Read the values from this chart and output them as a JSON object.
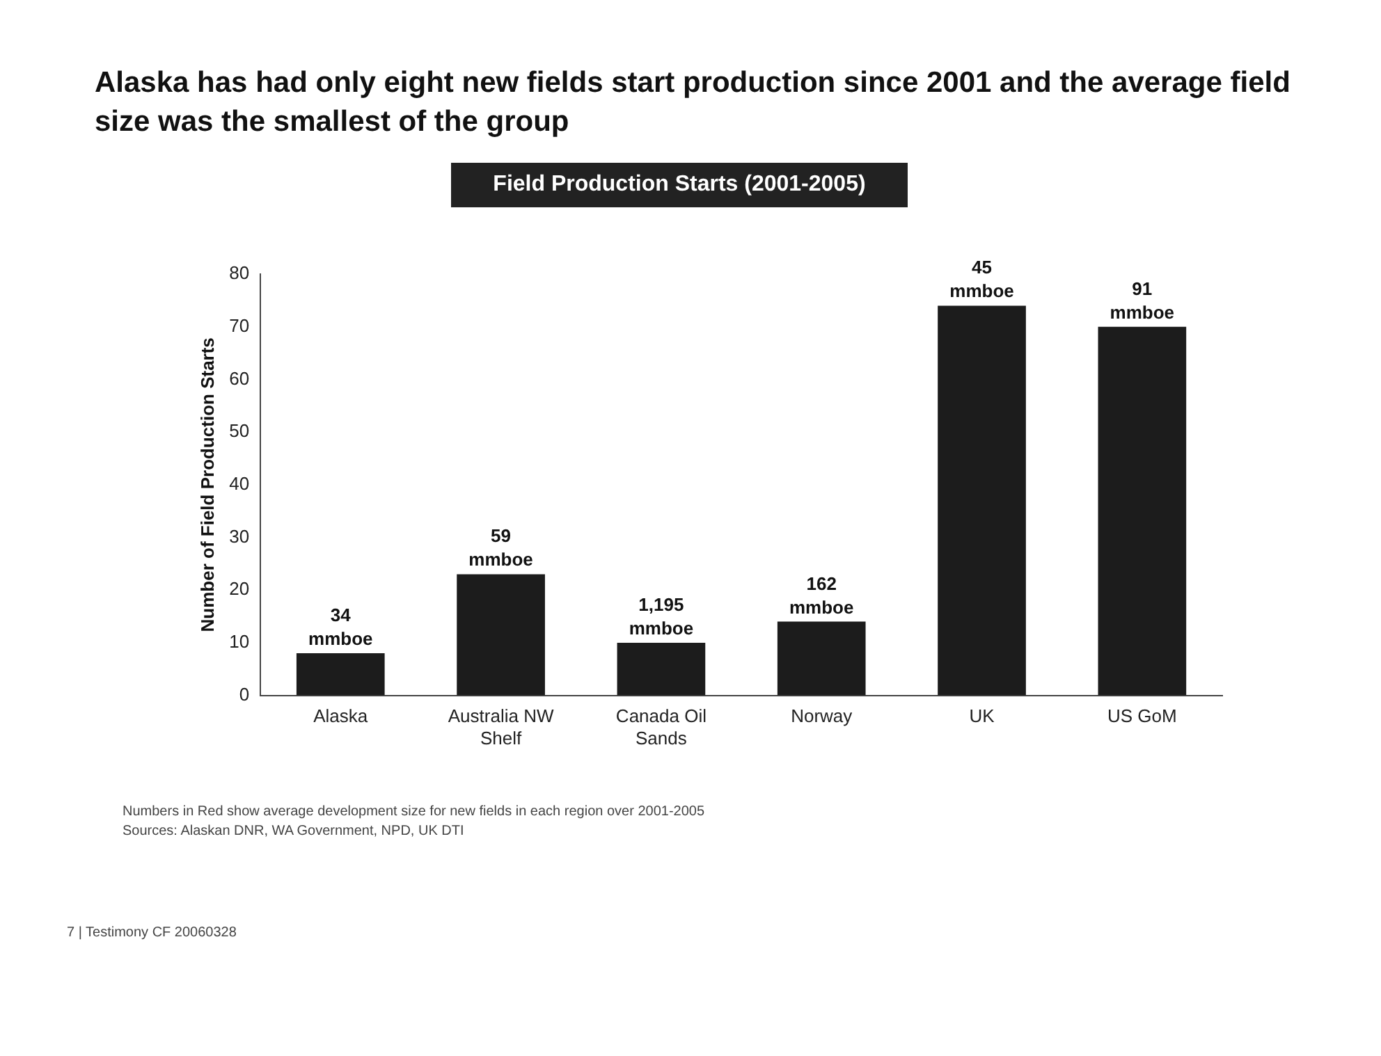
{
  "chart_data": {
    "type": "bar",
    "title": "Alaska has had only eight new fields start production since 2001 and the average field size was the smallest of the group",
    "subtitle": "Field Production Starts (2001-2005)",
    "ylabel": "Number of Field Production Starts",
    "categories": [
      "Alaska",
      "Australia NW Shelf",
      "Canada Oil Sands",
      "Norway",
      "UK",
      "US GoM"
    ],
    "values": [
      8,
      23,
      10,
      14,
      74,
      70
    ],
    "color": "#1c1c1c",
    "ylim": [
      0,
      80
    ],
    "yticks": [
      0,
      10,
      20,
      30,
      40,
      50,
      60,
      70,
      80
    ],
    "grid": false,
    "legend": false,
    "annotations": [
      {
        "text": "34 mmboe",
        "x": "Alaska",
        "y": 8
      },
      {
        "text": "59 mmboe",
        "x": "Australia NW Shelf",
        "y": 23
      },
      {
        "text": "1,195 mmboe",
        "x": "Canada Oil Sands",
        "y": 10
      },
      {
        "text": "162 mmboe",
        "x": "Norway",
        "y": 14
      },
      {
        "text": "45 mmboe",
        "x": "UK",
        "y": 74
      },
      {
        "text": "91 mmboe",
        "x": "US GoM",
        "y": 70
      },
      "Numbers in Red show average development size for new fields in each region over 2001-2005",
      "Sources: Alaskan DNR, WA Government, NPD, UK DTI",
      "7 | Testimony CF 20060328"
    ]
  }
}
